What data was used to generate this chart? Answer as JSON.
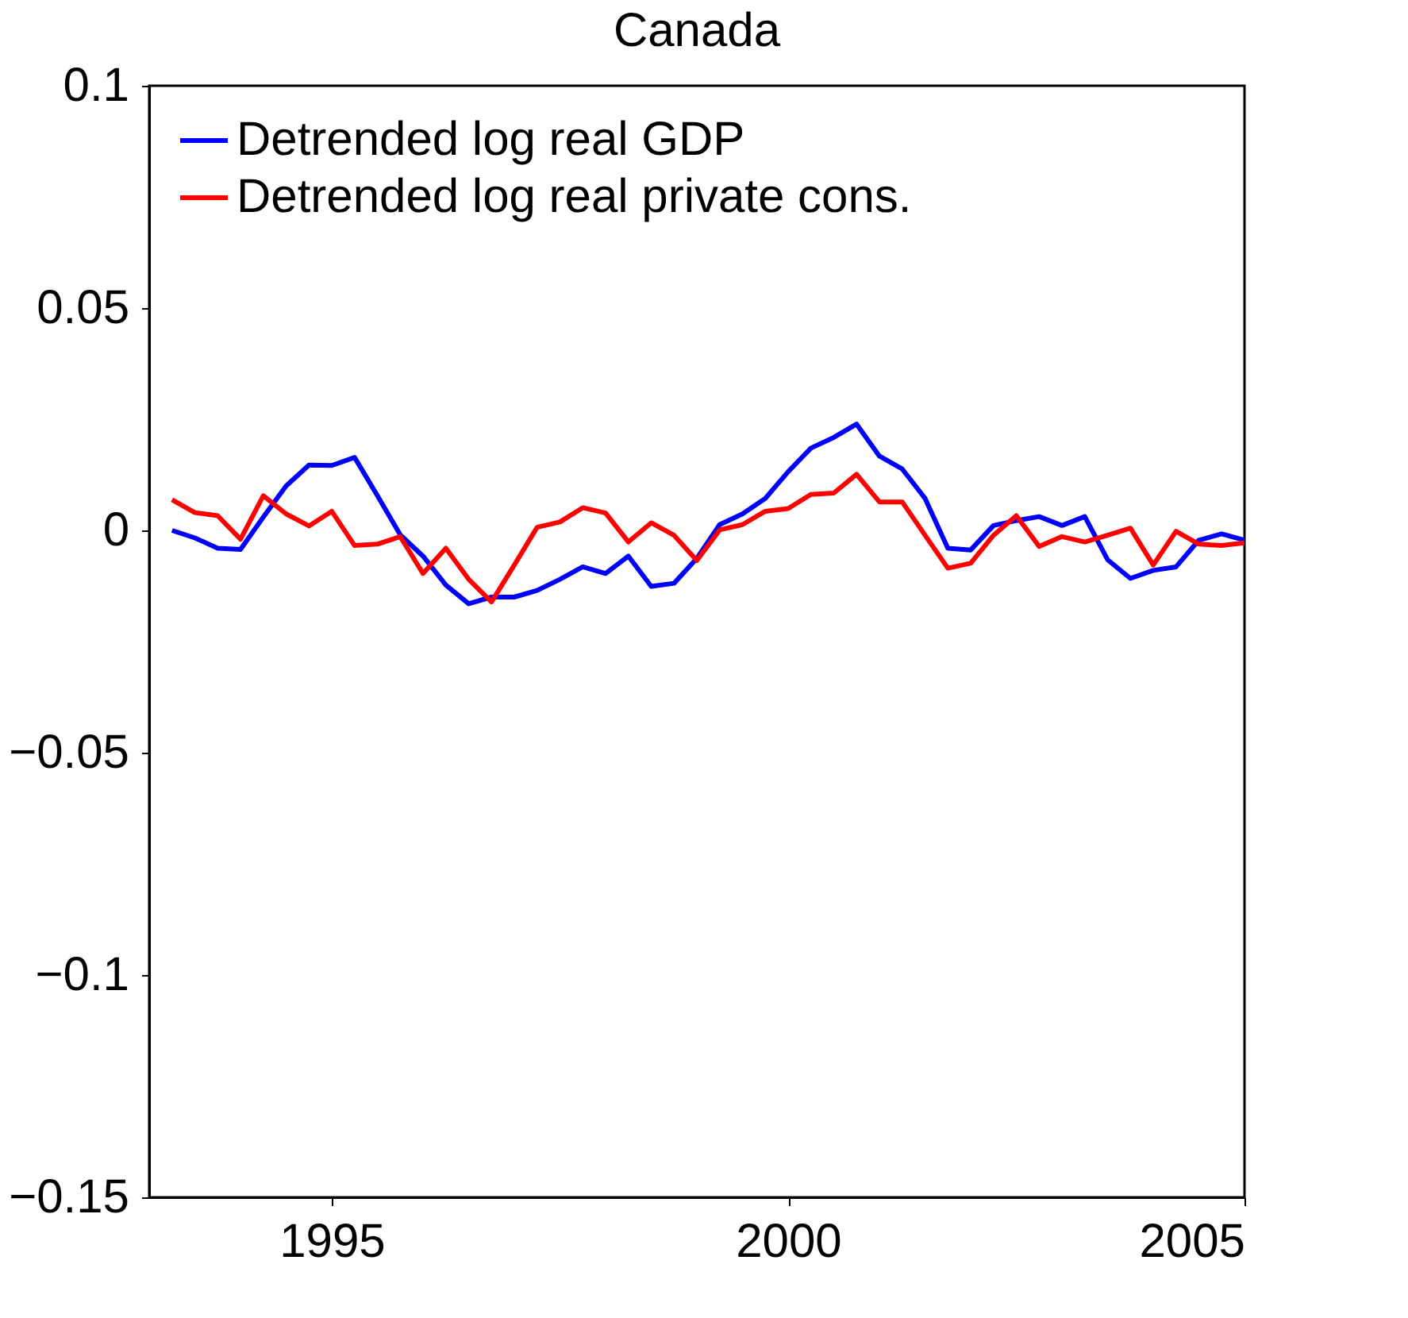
{
  "chart_data": {
    "type": "line",
    "title": "Canada",
    "x": [
      1993.25,
      1993.5,
      1993.75,
      1994,
      1994.25,
      1994.5,
      1994.75,
      1995,
      1995.25,
      1995.5,
      1995.75,
      1996,
      1996.25,
      1996.5,
      1996.75,
      1997,
      1997.25,
      1997.5,
      1997.75,
      1998,
      1998.25,
      1998.5,
      1998.75,
      1999,
      1999.25,
      1999.5,
      1999.75,
      2000,
      2000.25,
      2000.5,
      2000.75,
      2001,
      2001.25,
      2001.5,
      2001.75,
      2002,
      2002.25,
      2002.5,
      2002.75,
      2003,
      2003.25,
      2003.5,
      2003.75,
      2004,
      2004.25,
      2004.5,
      2004.75,
      2005
    ],
    "series": [
      {
        "name": "Detrended log real GDP",
        "color": "#0000ff",
        "values": [
          0.0,
          -0.0017,
          -0.004,
          -0.0043,
          0.003,
          0.01,
          0.0147,
          0.0146,
          0.0164,
          0.0078,
          -0.001,
          -0.0058,
          -0.0123,
          -0.0165,
          -0.015,
          -0.015,
          -0.0135,
          -0.011,
          -0.0082,
          -0.0097,
          -0.0058,
          -0.0126,
          -0.0119,
          -0.0063,
          0.0013,
          0.0037,
          0.0072,
          0.0132,
          0.0185,
          0.0209,
          0.0239,
          0.0167,
          0.0138,
          0.0072,
          -0.004,
          -0.0044,
          0.0011,
          0.0022,
          0.0031,
          0.0011,
          0.0031,
          -0.0066,
          -0.0108,
          -0.009,
          -0.0082,
          -0.0022,
          -0.0008,
          -0.0022
        ]
      },
      {
        "name": "Detrended log real private cons.",
        "color": "#ff0000",
        "values": [
          0.0069,
          0.004,
          0.0033,
          -0.002,
          0.0078,
          0.0037,
          0.001,
          0.0043,
          -0.0034,
          -0.0031,
          -0.0014,
          -0.0097,
          -0.004,
          -0.011,
          -0.0161,
          -0.0078,
          0.0007,
          0.0019,
          0.0051,
          0.0039,
          -0.0026,
          0.0017,
          -0.0011,
          -0.0068,
          0.0001,
          0.0013,
          0.0043,
          0.0049,
          0.0081,
          0.0084,
          0.0126,
          0.0064,
          0.0064,
          -0.0011,
          -0.0085,
          -0.0074,
          -0.0011,
          0.0033,
          -0.0036,
          -0.0014,
          -0.0026,
          -0.0011,
          0.0005,
          -0.0078,
          -0.0002,
          -0.0031,
          -0.0034,
          -0.0028
        ]
      }
    ],
    "xlim": [
      1993,
      2005
    ],
    "xticks": [
      1995,
      2000,
      2005
    ],
    "ylim": [
      -0.15,
      0.1
    ],
    "yticks": [
      {
        "value": -0.15,
        "label": "−0.15"
      },
      {
        "value": -0.1,
        "label": "−0.1"
      },
      {
        "value": -0.05,
        "label": "−0.05"
      },
      0,
      0.05,
      0.1
    ],
    "grid": false,
    "legend": "top left",
    "marker": "none",
    "line_style": "solid"
  }
}
